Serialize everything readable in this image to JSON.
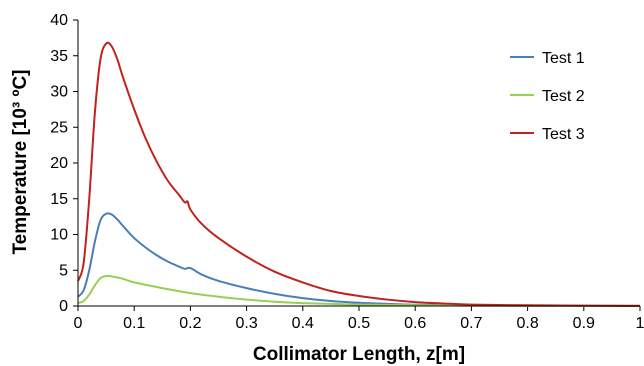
{
  "chart_data": {
    "type": "line",
    "xlabel": "Collimator Length, z[m]",
    "ylabel": "Temperature [10³ ºC]",
    "xlim": [
      0,
      1
    ],
    "ylim": [
      0,
      40
    ],
    "x_ticks": [
      "0",
      "0.1",
      "0.2",
      "0.3",
      "0.4",
      "0.5",
      "0.6",
      "0.7",
      "0.8",
      "0.9",
      "1"
    ],
    "y_ticks": [
      "0",
      "5",
      "10",
      "15",
      "20",
      "25",
      "30",
      "35",
      "40"
    ],
    "grid": false,
    "legend_position": "top-right",
    "series": [
      {
        "name": "Test 1",
        "color": "#4a7ebb",
        "points": [
          [
            0,
            1.3
          ],
          [
            0.01,
            2.2
          ],
          [
            0.02,
            5
          ],
          [
            0.03,
            9
          ],
          [
            0.04,
            12
          ],
          [
            0.05,
            12.9
          ],
          [
            0.06,
            12.8
          ],
          [
            0.07,
            12.1
          ],
          [
            0.08,
            11.2
          ],
          [
            0.1,
            9.5
          ],
          [
            0.12,
            8.2
          ],
          [
            0.14,
            7.1
          ],
          [
            0.16,
            6.2
          ],
          [
            0.18,
            5.5
          ],
          [
            0.19,
            5.2
          ],
          [
            0.2,
            5.3
          ],
          [
            0.22,
            4.4
          ],
          [
            0.25,
            3.5
          ],
          [
            0.3,
            2.5
          ],
          [
            0.35,
            1.7
          ],
          [
            0.4,
            1.1
          ],
          [
            0.45,
            0.7
          ],
          [
            0.5,
            0.45
          ],
          [
            0.55,
            0.3
          ],
          [
            0.6,
            0.18
          ],
          [
            0.7,
            0.08
          ],
          [
            0.8,
            0.04
          ],
          [
            0.9,
            0.02
          ],
          [
            1,
            0.01
          ]
        ]
      },
      {
        "name": "Test 2",
        "color": "#98d054",
        "points": [
          [
            0,
            0.4
          ],
          [
            0.01,
            0.7
          ],
          [
            0.02,
            1.6
          ],
          [
            0.03,
            2.9
          ],
          [
            0.04,
            3.9
          ],
          [
            0.05,
            4.2
          ],
          [
            0.06,
            4.15
          ],
          [
            0.08,
            3.8
          ],
          [
            0.1,
            3.3
          ],
          [
            0.15,
            2.5
          ],
          [
            0.2,
            1.8
          ],
          [
            0.25,
            1.3
          ],
          [
            0.3,
            0.9
          ],
          [
            0.35,
            0.6
          ],
          [
            0.4,
            0.4
          ],
          [
            0.5,
            0.2
          ],
          [
            0.6,
            0.1
          ],
          [
            0.7,
            0.05
          ],
          [
            0.8,
            0.02
          ],
          [
            1,
            0.01
          ]
        ]
      },
      {
        "name": "Test 3",
        "color": "#c0231d",
        "points": [
          [
            0,
            3.5
          ],
          [
            0.01,
            6
          ],
          [
            0.02,
            15
          ],
          [
            0.03,
            27
          ],
          [
            0.04,
            34.5
          ],
          [
            0.05,
            36.7
          ],
          [
            0.06,
            36.3
          ],
          [
            0.07,
            34.5
          ],
          [
            0.08,
            32
          ],
          [
            0.1,
            27.5
          ],
          [
            0.12,
            23.5
          ],
          [
            0.14,
            20.2
          ],
          [
            0.16,
            17.5
          ],
          [
            0.18,
            15.5
          ],
          [
            0.19,
            14.5
          ],
          [
            0.195,
            14.6
          ],
          [
            0.2,
            13.5
          ],
          [
            0.22,
            11.5
          ],
          [
            0.25,
            9.5
          ],
          [
            0.3,
            6.9
          ],
          [
            0.35,
            4.8
          ],
          [
            0.4,
            3.3
          ],
          [
            0.45,
            2.1
          ],
          [
            0.5,
            1.4
          ],
          [
            0.55,
            0.9
          ],
          [
            0.6,
            0.55
          ],
          [
            0.65,
            0.35
          ],
          [
            0.7,
            0.2
          ],
          [
            0.8,
            0.1
          ],
          [
            0.9,
            0.05
          ],
          [
            1,
            0.02
          ]
        ]
      }
    ]
  }
}
